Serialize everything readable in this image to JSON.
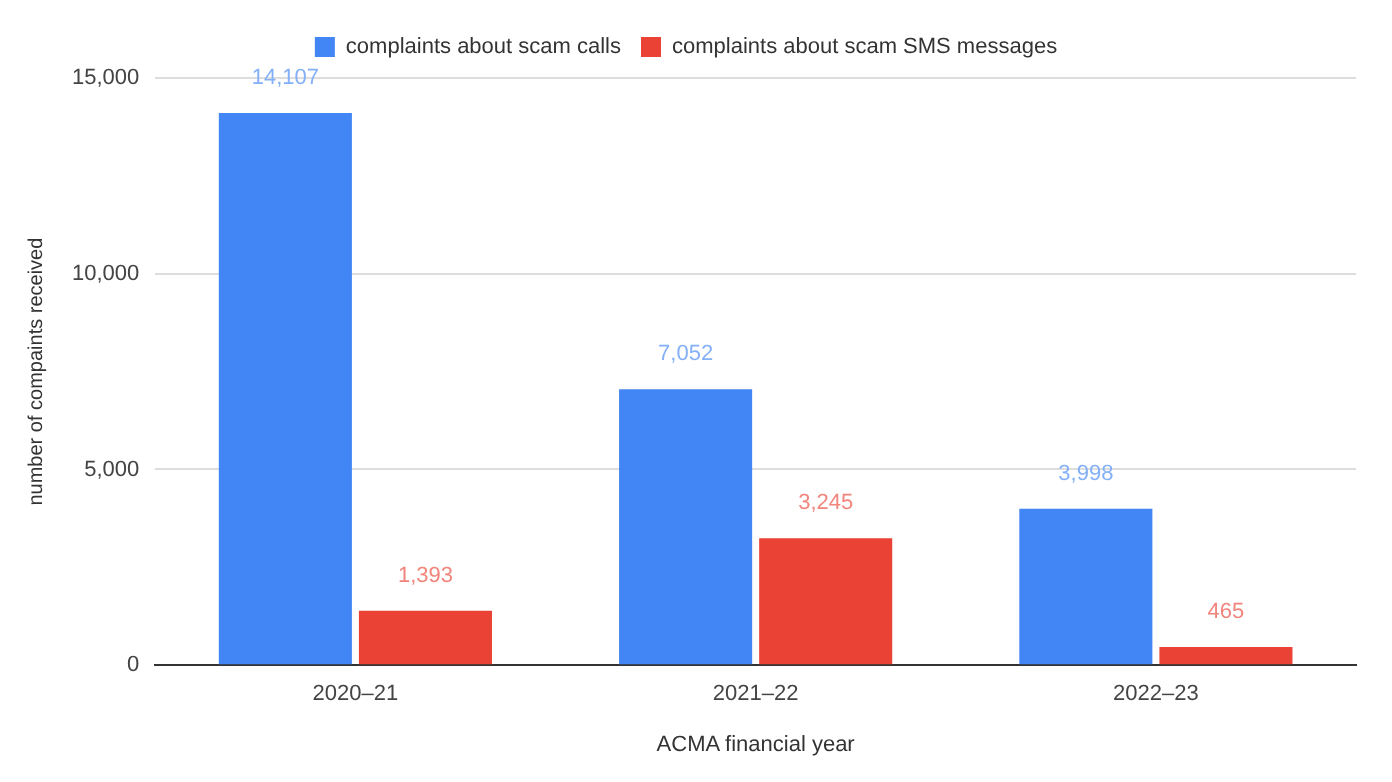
{
  "chart_data": {
    "type": "bar",
    "xlabel": "ACMA financial year",
    "ylabel": "number of compaints received",
    "categories": [
      "2020–21",
      "2021–22",
      "2022–23"
    ],
    "series": [
      {
        "name": "complaints about scam calls",
        "color": "#4285f4",
        "values": [
          14107,
          7052,
          3998
        ],
        "value_labels": [
          "14,107",
          "7,052",
          "3,998"
        ]
      },
      {
        "name": "complaints about scam SMS messages",
        "color": "#ea4335",
        "values": [
          1393,
          3245,
          465
        ],
        "value_labels": [
          "1,393",
          "3,245",
          "465"
        ]
      }
    ],
    "ylim": [
      0,
      15000
    ],
    "yticks": [
      {
        "value": 0,
        "label": "0"
      },
      {
        "value": 5000,
        "label": "5,000"
      },
      {
        "value": 10000,
        "label": "10,000"
      },
      {
        "value": 15000,
        "label": "15,000"
      }
    ],
    "grid": "y",
    "legend": "top"
  }
}
